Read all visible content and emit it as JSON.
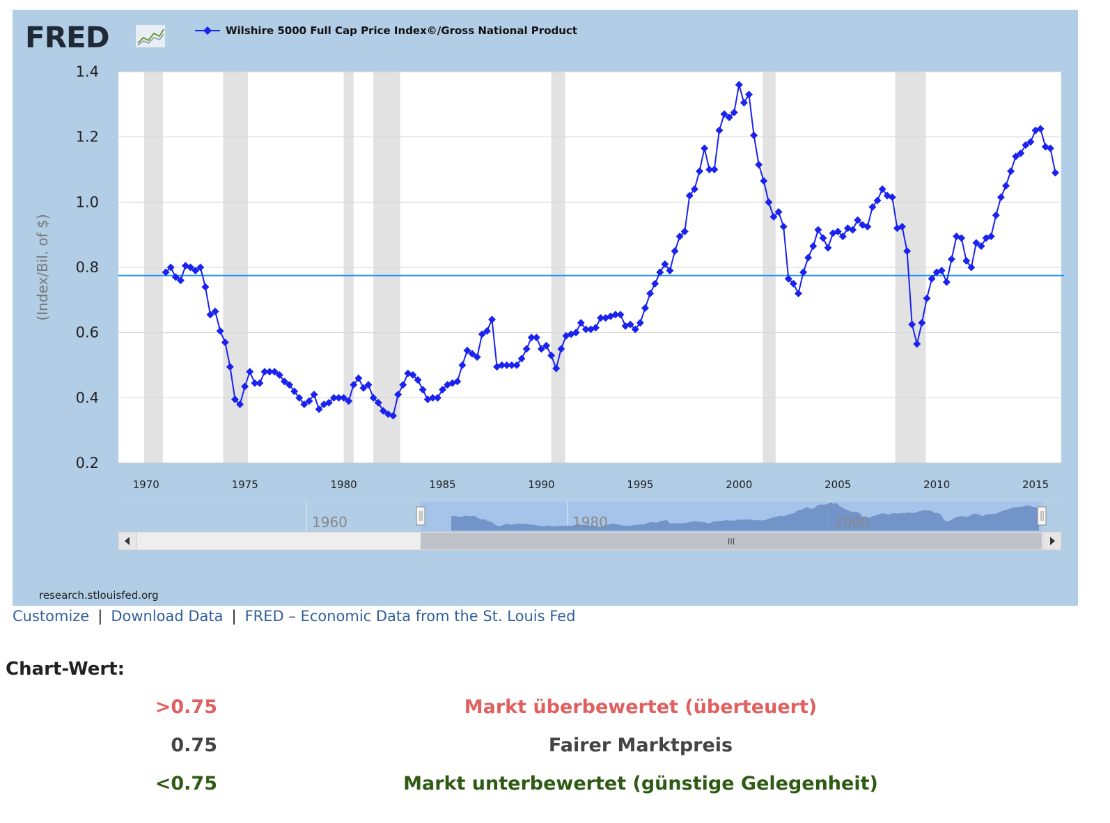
{
  "fred": {
    "logo_text": "FRED",
    "series_name": "Wilshire 5000 Full Cap Price Index©/Gross National Product",
    "source": "research.stlouisfed.org",
    "navigator_years": [
      "1960",
      "1980",
      "2000"
    ],
    "navigator_grip": "III"
  },
  "chart_data": {
    "type": "line",
    "title": "Wilshire 5000 Full Cap Price Index©/Gross National Product",
    "xlabel": "",
    "ylabel": "(Index/Bil. of $)",
    "xlim": [
      1968.6,
      2016.3
    ],
    "ylim": [
      0.2,
      1.4
    ],
    "yticks": [
      0.2,
      0.4,
      0.6,
      0.8,
      1.0,
      1.2,
      1.4
    ],
    "ytick_labels": [
      "0.2",
      "0.4",
      "0.6",
      "0.8",
      "1.0",
      "1.2",
      "1.4"
    ],
    "xticks": [
      1970,
      1975,
      1980,
      1985,
      1990,
      1995,
      2000,
      2005,
      2010,
      2015
    ],
    "xtick_labels": [
      "1970",
      "1975",
      "1980",
      "1985",
      "1990",
      "1995",
      "2000",
      "2005",
      "2010",
      "2015"
    ],
    "reference_line": 0.775,
    "recessions": [
      [
        1969.9,
        1970.85
      ],
      [
        1973.9,
        1975.15
      ],
      [
        1980.0,
        1980.5
      ],
      [
        1981.5,
        1982.85
      ],
      [
        1990.5,
        1991.2
      ],
      [
        2001.2,
        2001.85
      ],
      [
        2007.9,
        2009.45
      ]
    ],
    "series": [
      {
        "name": "Wilshire 5000 Full Cap Price Index©/Gross National Product",
        "color": "#1a22ee",
        "x": [
          1971.0,
          1971.25,
          1971.5,
          1971.75,
          1972.0,
          1972.25,
          1972.5,
          1972.75,
          1973.0,
          1973.25,
          1973.5,
          1973.75,
          1974.0,
          1974.25,
          1974.5,
          1974.75,
          1975.0,
          1975.25,
          1975.5,
          1975.75,
          1976.0,
          1976.25,
          1976.5,
          1976.75,
          1977.0,
          1977.25,
          1977.5,
          1977.75,
          1978.0,
          1978.25,
          1978.5,
          1978.75,
          1979.0,
          1979.25,
          1979.5,
          1979.75,
          1980.0,
          1980.25,
          1980.5,
          1980.75,
          1981.0,
          1981.25,
          1981.5,
          1981.75,
          1982.0,
          1982.25,
          1982.5,
          1982.75,
          1983.0,
          1983.25,
          1983.5,
          1983.75,
          1984.0,
          1984.25,
          1984.5,
          1984.75,
          1985.0,
          1985.25,
          1985.5,
          1985.75,
          1986.0,
          1986.25,
          1986.5,
          1986.75,
          1987.0,
          1987.25,
          1987.5,
          1987.75,
          1988.0,
          1988.25,
          1988.5,
          1988.75,
          1989.0,
          1989.25,
          1989.5,
          1989.75,
          1990.0,
          1990.25,
          1990.5,
          1990.75,
          1991.0,
          1991.25,
          1991.5,
          1991.75,
          1992.0,
          1992.25,
          1992.5,
          1992.75,
          1993.0,
          1993.25,
          1993.5,
          1993.75,
          1994.0,
          1994.25,
          1994.5,
          1994.75,
          1995.0,
          1995.25,
          1995.5,
          1995.75,
          1996.0,
          1996.25,
          1996.5,
          1996.75,
          1997.0,
          1997.25,
          1997.5,
          1997.75,
          1998.0,
          1998.25,
          1998.5,
          1998.75,
          1999.0,
          1999.25,
          1999.5,
          1999.75,
          2000.0,
          2000.25,
          2000.5,
          2000.75,
          2001.0,
          2001.25,
          2001.5,
          2001.75,
          2002.0,
          2002.25,
          2002.5,
          2002.75,
          2003.0,
          2003.25,
          2003.5,
          2003.75,
          2004.0,
          2004.25,
          2004.5,
          2004.75,
          2005.0,
          2005.25,
          2005.5,
          2005.75,
          2006.0,
          2006.25,
          2006.5,
          2006.75,
          2007.0,
          2007.25,
          2007.5,
          2007.75,
          2008.0,
          2008.25,
          2008.5,
          2008.75,
          2009.0,
          2009.25,
          2009.5,
          2009.75,
          2010.0,
          2010.25,
          2010.5,
          2010.75,
          2011.0,
          2011.25,
          2011.5,
          2011.75,
          2012.0,
          2012.25,
          2012.5,
          2012.75,
          2013.0,
          2013.25,
          2013.5,
          2013.75,
          2014.0,
          2014.25,
          2014.5,
          2014.75,
          2015.0,
          2015.25,
          2015.5,
          2015.75,
          2016.0
        ],
        "values": [
          0.785,
          0.8,
          0.77,
          0.76,
          0.805,
          0.8,
          0.79,
          0.8,
          0.74,
          0.655,
          0.665,
          0.605,
          0.57,
          0.495,
          0.395,
          0.38,
          0.435,
          0.48,
          0.445,
          0.445,
          0.48,
          0.48,
          0.48,
          0.47,
          0.45,
          0.44,
          0.42,
          0.4,
          0.38,
          0.39,
          0.41,
          0.365,
          0.38,
          0.385,
          0.4,
          0.4,
          0.4,
          0.39,
          0.44,
          0.46,
          0.43,
          0.44,
          0.4,
          0.385,
          0.36,
          0.35,
          0.345,
          0.41,
          0.44,
          0.475,
          0.47,
          0.455,
          0.425,
          0.395,
          0.4,
          0.4,
          0.425,
          0.44,
          0.445,
          0.45,
          0.5,
          0.545,
          0.535,
          0.525,
          0.595,
          0.605,
          0.64,
          0.495,
          0.5,
          0.5,
          0.5,
          0.5,
          0.52,
          0.55,
          0.585,
          0.585,
          0.55,
          0.56,
          0.53,
          0.49,
          0.55,
          0.59,
          0.595,
          0.6,
          0.63,
          0.61,
          0.61,
          0.615,
          0.645,
          0.645,
          0.65,
          0.655,
          0.655,
          0.62,
          0.625,
          0.61,
          0.63,
          0.675,
          0.72,
          0.75,
          0.785,
          0.81,
          0.79,
          0.85,
          0.895,
          0.91,
          1.02,
          1.04,
          1.095,
          1.165,
          1.1,
          1.1,
          1.22,
          1.27,
          1.26,
          1.275,
          1.36,
          1.305,
          1.33,
          1.205,
          1.115,
          1.065,
          1.0,
          0.955,
          0.97,
          0.925,
          0.765,
          0.75,
          0.72,
          0.785,
          0.83,
          0.865,
          0.915,
          0.89,
          0.86,
          0.905,
          0.91,
          0.895,
          0.92,
          0.915,
          0.945,
          0.93,
          0.925,
          0.985,
          1.005,
          1.04,
          1.02,
          1.015,
          0.92,
          0.925,
          0.85,
          0.625,
          0.565,
          0.63,
          0.705,
          0.765,
          0.785,
          0.79,
          0.755,
          0.825,
          0.895,
          0.89,
          0.82,
          0.8,
          0.875,
          0.865,
          0.89,
          0.895,
          0.96,
          1.015,
          1.05,
          1.095,
          1.14,
          1.15,
          1.175,
          1.185,
          1.22,
          1.225,
          1.17,
          1.165,
          1.09
        ]
      }
    ]
  },
  "links": {
    "customize": "Customize",
    "sep": "|",
    "download": "Download Data",
    "fred_home": "FRED – Economic Data from the St. Louis Fed"
  },
  "valuation": {
    "heading": "Chart-Wert:",
    "rows": [
      {
        "value": ">0.75",
        "label": "Markt überbewertet (überteuert)",
        "color": "#e06060"
      },
      {
        "value": "0.75",
        "label": "Fairer Marktpreis",
        "color": "#444444"
      },
      {
        "value": "<0.75",
        "label": "Markt unterbewertet (günstige Gelegenheit)",
        "color": "#2e5b14"
      }
    ]
  }
}
